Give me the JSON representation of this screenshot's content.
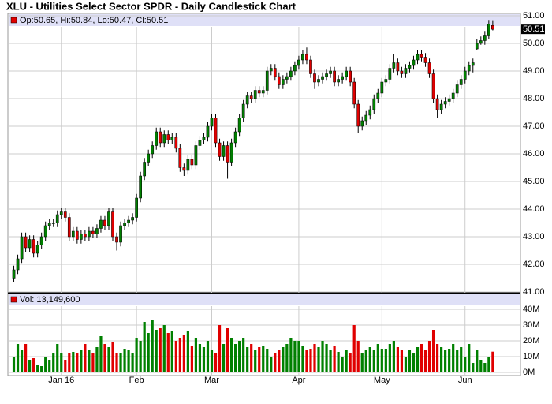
{
  "chart_data": {
    "type": "candlestick",
    "title": "XLU - Utilities Select Sector SPDR - Daily Candlestick Chart",
    "legend": "Op:50.65, Hi:50.84, Lo:50.47, Cl:50.51",
    "volume_legend": "Vol: 13,149,600",
    "up_color": "#008000",
    "down_color": "#e00000",
    "grid": true,
    "xlim": [
      -1.5,
      128
    ],
    "xticks": [
      {
        "value": 12,
        "label": "Jan 16"
      },
      {
        "value": 31,
        "label": "Feb"
      },
      {
        "value": 50,
        "label": "Mar"
      },
      {
        "value": 72,
        "label": "Apr"
      },
      {
        "value": 93,
        "label": "May"
      },
      {
        "value": 114,
        "label": "Jun"
      }
    ],
    "ylim": [
      41,
      51
    ],
    "yticks": [
      {
        "value": 41,
        "label": "41.00"
      },
      {
        "value": 42,
        "label": "42.00"
      },
      {
        "value": 43,
        "label": "43.00"
      },
      {
        "value": 44,
        "label": "44.00"
      },
      {
        "value": 45,
        "label": "45.00"
      },
      {
        "value": 46,
        "label": "46.00"
      },
      {
        "value": 47,
        "label": "47.00"
      },
      {
        "value": 48,
        "label": "48.00"
      },
      {
        "value": 49,
        "label": "49.00"
      },
      {
        "value": 50,
        "label": "50.00"
      },
      {
        "value": 51,
        "label": "51.00"
      }
    ],
    "volume_ylim": [
      0,
      40
    ],
    "volume_yticks": [
      {
        "value": 0,
        "label": "0M"
      },
      {
        "value": 10,
        "label": "10M"
      },
      {
        "value": 20,
        "label": "20M"
      },
      {
        "value": 30,
        "label": "30M"
      },
      {
        "value": 40,
        "label": "40M"
      }
    ],
    "open": [
      41.5,
      41.8,
      42.2,
      43.0,
      42.6,
      42.9,
      42.4,
      42.7,
      43.0,
      43.4,
      43.5,
      43.5,
      43.8,
      43.9,
      43.7,
      43.0,
      43.2,
      42.9,
      43.1,
      43.0,
      43.2,
      43.1,
      43.3,
      43.6,
      43.4,
      43.9,
      43.0,
      42.8,
      43.4,
      43.5,
      43.6,
      43.7,
      44.4,
      45.2,
      45.7,
      46.0,
      46.3,
      46.8,
      46.4,
      46.7,
      46.5,
      46.6,
      46.2,
      45.5,
      45.4,
      45.8,
      45.6,
      46.3,
      46.5,
      46.6,
      47.0,
      47.3,
      46.4,
      45.9,
      46.3,
      45.7,
      46.4,
      46.8,
      47.3,
      47.8,
      48.1,
      48.0,
      48.3,
      48.2,
      48.3,
      49.0,
      49.1,
      48.8,
      48.5,
      48.7,
      48.8,
      49.0,
      49.2,
      49.4,
      49.6,
      49.4,
      48.9,
      48.6,
      48.7,
      48.8,
      48.9,
      49.0,
      48.6,
      48.7,
      48.8,
      49.0,
      48.6,
      47.8,
      47.0,
      47.2,
      47.4,
      47.6,
      48.0,
      48.2,
      48.6,
      48.7,
      49.1,
      49.3,
      49.0,
      48.9,
      49.1,
      49.2,
      49.4,
      49.6,
      49.5,
      49.3,
      48.9,
      48.0,
      47.6,
      47.8,
      47.9,
      48.0,
      48.2,
      48.5,
      48.7,
      49.0,
      49.2,
      49.8,
      50.0,
      50.1,
      50.3,
      50.65
    ],
    "high": [
      41.95,
      42.35,
      43.15,
      43.15,
      43.05,
      43.05,
      42.85,
      43.15,
      43.55,
      43.65,
      43.65,
      43.95,
      44.05,
      44.05,
      43.85,
      43.35,
      43.35,
      43.25,
      43.25,
      43.35,
      43.35,
      43.45,
      43.75,
      43.75,
      44.05,
      44.05,
      43.15,
      43.55,
      43.65,
      43.75,
      43.85,
      44.55,
      45.35,
      45.85,
      46.15,
      46.45,
      46.95,
      46.95,
      46.85,
      46.85,
      46.75,
      46.75,
      46.35,
      45.65,
      45.95,
      45.95,
      46.45,
      46.65,
      46.75,
      47.15,
      47.45,
      47.45,
      46.55,
      46.45,
      46.45,
      46.55,
      46.95,
      47.45,
      47.95,
      48.25,
      48.25,
      48.45,
      48.45,
      48.45,
      49.15,
      49.25,
      49.25,
      48.95,
      48.85,
      48.95,
      49.15,
      49.35,
      49.55,
      49.75,
      49.85,
      49.55,
      49.05,
      48.85,
      48.95,
      49.05,
      49.15,
      49.15,
      48.85,
      48.95,
      49.15,
      49.15,
      48.75,
      47.95,
      47.35,
      47.55,
      47.75,
      48.15,
      48.35,
      48.75,
      48.85,
      49.25,
      49.6,
      49.45,
      49.15,
      49.25,
      49.35,
      49.55,
      49.75,
      49.75,
      49.65,
      49.45,
      49.05,
      48.15,
      47.95,
      48.05,
      48.15,
      48.35,
      48.65,
      48.85,
      49.15,
      49.35,
      49.45,
      50.15,
      50.25,
      50.45,
      50.85,
      50.84
    ],
    "low": [
      41.35,
      41.65,
      42.05,
      42.45,
      42.45,
      42.25,
      42.25,
      42.55,
      42.85,
      43.25,
      43.35,
      43.35,
      43.65,
      43.55,
      42.85,
      42.85,
      42.75,
      42.75,
      42.85,
      42.85,
      42.95,
      42.95,
      43.15,
      43.25,
      43.25,
      42.85,
      42.5,
      42.65,
      43.25,
      43.35,
      43.45,
      43.55,
      44.25,
      45.05,
      45.55,
      45.85,
      46.15,
      46.25,
      46.25,
      46.35,
      46.35,
      46.05,
      45.35,
      45.2,
      45.25,
      45.45,
      45.45,
      46.15,
      46.35,
      46.45,
      46.85,
      46.25,
      45.75,
      45.75,
      45.1,
      45.55,
      46.25,
      46.65,
      47.15,
      47.65,
      47.85,
      47.85,
      48.05,
      48.05,
      48.15,
      48.85,
      48.65,
      48.35,
      48.35,
      48.55,
      48.65,
      48.85,
      49.05,
      49.25,
      49.25,
      48.75,
      48.35,
      48.45,
      48.55,
      48.65,
      48.75,
      48.45,
      48.45,
      48.55,
      48.65,
      48.45,
      47.65,
      46.75,
      46.85,
      47.05,
      47.25,
      47.45,
      47.85,
      48.05,
      48.45,
      48.55,
      48.95,
      48.85,
      48.75,
      48.75,
      48.95,
      49.05,
      49.25,
      49.35,
      49.15,
      48.75,
      47.85,
      47.3,
      47.45,
      47.65,
      47.75,
      47.85,
      48.05,
      48.35,
      48.55,
      48.85,
      48.95,
      49.75,
      49.95,
      49.95,
      50.15,
      50.47
    ],
    "close": [
      41.8,
      42.2,
      43.0,
      42.6,
      42.9,
      42.4,
      42.7,
      43.0,
      43.4,
      43.5,
      43.5,
      43.8,
      43.9,
      43.7,
      43.0,
      43.2,
      42.9,
      43.1,
      43.0,
      43.2,
      43.1,
      43.3,
      43.6,
      43.4,
      43.9,
      43.0,
      42.8,
      43.4,
      43.5,
      43.6,
      43.7,
      44.4,
      45.2,
      45.7,
      46.0,
      46.3,
      46.8,
      46.4,
      46.7,
      46.5,
      46.6,
      46.2,
      45.5,
      45.4,
      45.8,
      45.6,
      46.3,
      46.5,
      46.6,
      47.0,
      47.3,
      46.4,
      45.9,
      46.3,
      45.7,
      46.4,
      46.8,
      47.3,
      47.8,
      48.1,
      48.0,
      48.3,
      48.2,
      48.3,
      49.0,
      49.1,
      48.8,
      48.5,
      48.7,
      48.8,
      49.0,
      49.2,
      49.4,
      49.6,
      49.4,
      48.9,
      48.6,
      48.7,
      48.8,
      48.9,
      49.0,
      48.6,
      48.7,
      48.8,
      49.0,
      48.6,
      47.8,
      47.0,
      47.2,
      47.4,
      47.6,
      48.0,
      48.2,
      48.6,
      48.7,
      49.1,
      49.3,
      49.0,
      48.9,
      49.1,
      49.2,
      49.4,
      49.6,
      49.5,
      49.3,
      48.9,
      48.0,
      47.6,
      47.8,
      47.9,
      48.0,
      48.2,
      48.5,
      48.7,
      49.0,
      49.2,
      49.3,
      50.0,
      50.1,
      50.3,
      50.7,
      50.51
    ],
    "volume": [
      10,
      18,
      14,
      18,
      8,
      9,
      5,
      4,
      10,
      8,
      12,
      18,
      12,
      8,
      12,
      13,
      12,
      14,
      18,
      14,
      12,
      16,
      23,
      18,
      16,
      19,
      12,
      12,
      15,
      14,
      12,
      22,
      20,
      32,
      25,
      33,
      27,
      28,
      30,
      25,
      26,
      20,
      22,
      24,
      26,
      17,
      22,
      18,
      16,
      20,
      14,
      12,
      30,
      18,
      28,
      22,
      18,
      20,
      22,
      16,
      18,
      14,
      16,
      17,
      15,
      10,
      12,
      14,
      16,
      18,
      22,
      20,
      20,
      17,
      14,
      15,
      18,
      16,
      20,
      18,
      14,
      17,
      13,
      10,
      14,
      12,
      30,
      20,
      12,
      14,
      16,
      14,
      18,
      15,
      15,
      18,
      20,
      16,
      14,
      10,
      14,
      12,
      16,
      18,
      14,
      20,
      27,
      18,
      16,
      14,
      15,
      18,
      14,
      16,
      10,
      18,
      6,
      14,
      8,
      6,
      10,
      13.1496
    ]
  }
}
